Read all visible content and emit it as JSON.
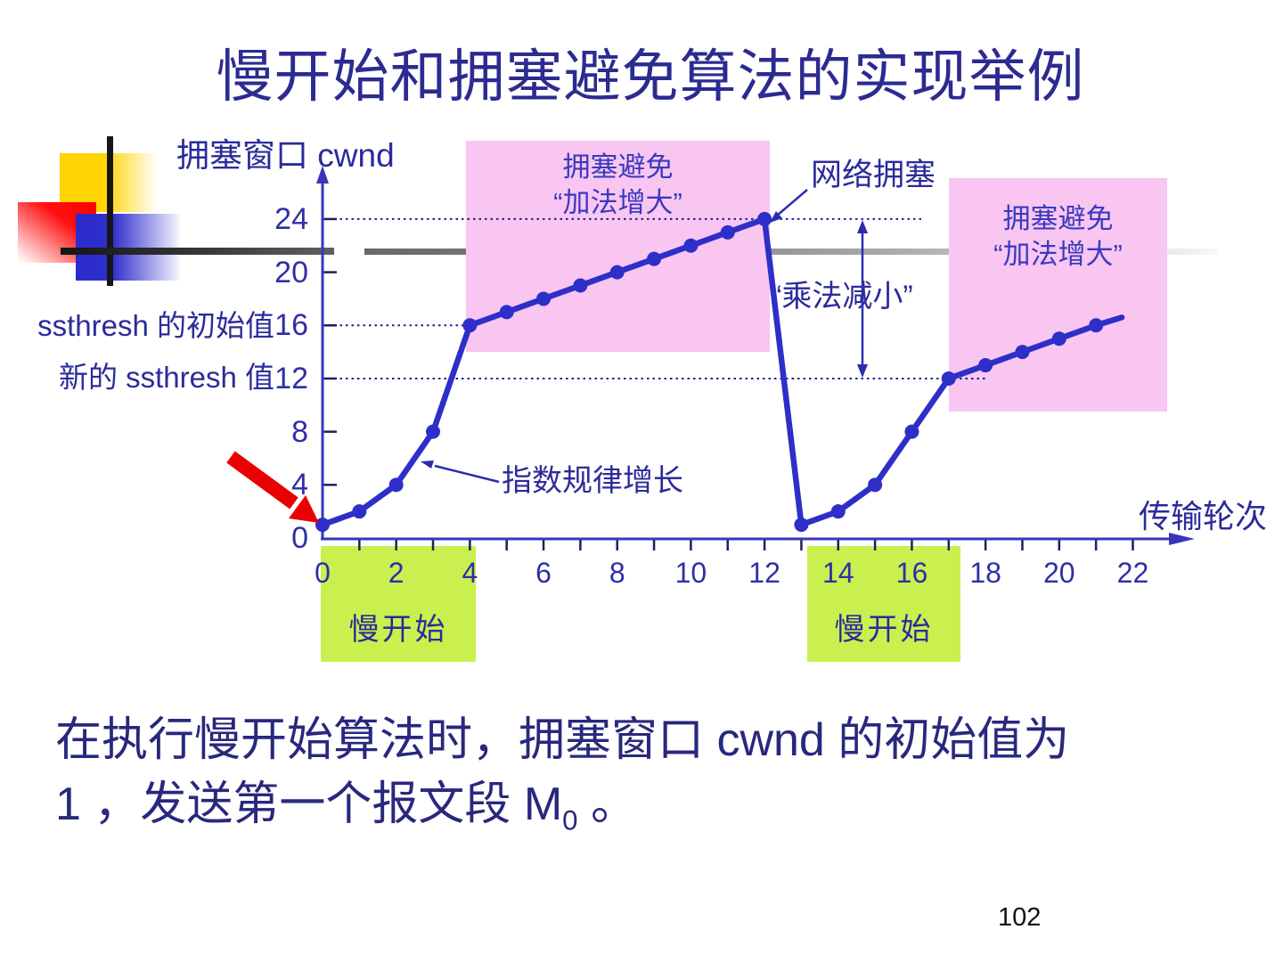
{
  "title": "慢开始和拥塞避免算法的实现举例",
  "page_number": "102",
  "body_text": {
    "line1": "在执行慢开始算法时，拥塞窗口  cwnd  的初始值为",
    "line2_main": "1  ，发送第一个报文段  M",
    "line2_sub": "0",
    "line2_tail": " 。"
  },
  "labels": {
    "y_axis_title": "拥塞窗口  cwnd",
    "x_axis_title": "传输轮次",
    "ssthresh_initial": "ssthresh  的初始值",
    "ssthresh_new": "新的  ssthresh  值",
    "congestion_avoidance_line1": "拥塞避免",
    "congestion_avoidance_line2": "“加法增大”",
    "network_congestion": "网络拥塞",
    "multiplicative_decrease": "“乘法减小”",
    "exponential_growth": "指数规律增长",
    "slow_start": "慢开始"
  },
  "colors": {
    "curve": "#2e2ec8",
    "axis": "#3636bd",
    "text": "#2b2b9b",
    "pink_box": "#f8c6f1",
    "green_box": "#c9f04e",
    "red_arrow": "#e90000",
    "gridline": "#1f1f8a"
  },
  "chart_data": {
    "type": "line",
    "xlabel": "传输轮次",
    "ylabel": "拥塞窗口 cwnd",
    "x_tick_labels": [
      0,
      2,
      4,
      6,
      8,
      10,
      12,
      14,
      16,
      18,
      20,
      22
    ],
    "y_tick_labels": [
      24,
      20,
      16,
      12,
      8,
      4,
      0
    ],
    "y_tick_marks": [
      4,
      8,
      12,
      16,
      20,
      24
    ],
    "x_tick_marks": [
      1,
      2,
      3,
      4,
      5,
      6,
      7,
      8,
      9,
      10,
      11,
      12,
      13,
      14,
      15,
      16,
      17,
      18,
      19,
      20,
      21,
      22
    ],
    "xlim": [
      0,
      23.5
    ],
    "ylim": [
      0,
      26.8
    ],
    "legend_position": "none",
    "grid": "dotted horizontal partial lines at y = 24, 16, 12",
    "dotted_gridlines": [
      {
        "y": 24,
        "t_end": 16.3
      },
      {
        "y": 16,
        "t_end": 3.9
      },
      {
        "y": 12,
        "t_end": 18.0
      }
    ],
    "series": [
      {
        "name": "慢开始（指数规律增长）",
        "points": [
          [
            0,
            1
          ],
          [
            1,
            2
          ],
          [
            2,
            4
          ],
          [
            3,
            8
          ],
          [
            4,
            16
          ]
        ]
      },
      {
        "name": "拥塞避免“加法增大”",
        "points": [
          [
            4,
            16
          ],
          [
            5,
            17
          ],
          [
            6,
            18
          ],
          [
            7,
            19
          ],
          [
            8,
            20
          ],
          [
            9,
            21
          ],
          [
            10,
            22
          ],
          [
            11,
            23
          ],
          [
            12,
            24
          ]
        ]
      },
      {
        "name": "网络拥塞“乘法减小”",
        "points": [
          [
            12,
            24
          ],
          [
            13,
            1
          ]
        ]
      },
      {
        "name": "慢开始（第二次）",
        "points": [
          [
            13,
            1
          ],
          [
            14,
            2
          ],
          [
            15,
            4
          ],
          [
            16,
            8
          ],
          [
            17,
            12
          ]
        ]
      },
      {
        "name": "拥塞避免“加法增大”（第二次）",
        "points": [
          [
            17,
            12
          ],
          [
            18,
            13
          ],
          [
            19,
            14
          ],
          [
            20,
            15
          ],
          [
            21,
            16
          ]
        ],
        "tail": [
          21.7,
          16.6
        ]
      }
    ],
    "key_values": {
      "ssthresh_initial": 16,
      "ssthresh_new": 12,
      "cwnd_initial": 1,
      "peak_cwnd": 24
    }
  }
}
